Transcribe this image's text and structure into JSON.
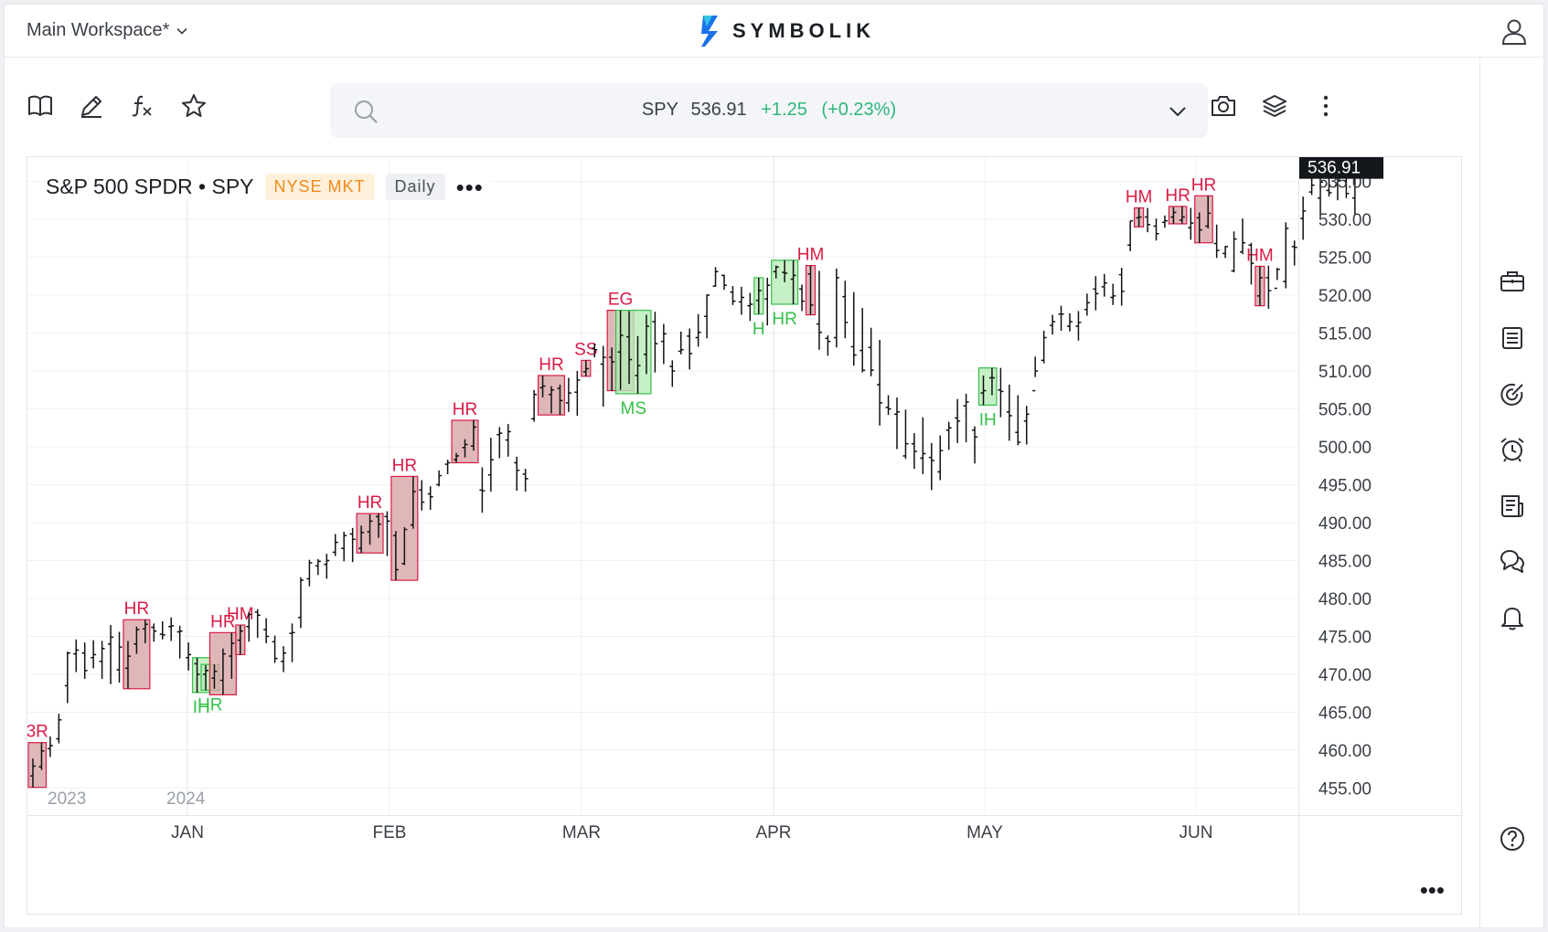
{
  "header": {
    "workspace_label": "Main Workspace*",
    "brand": "SYMBOLIK"
  },
  "quote": {
    "symbol": "SPY",
    "price": "536.91",
    "change": "+1.25",
    "change_pct": "(+0.23%)"
  },
  "chart_head": {
    "title": "S&P 500 SPDR • SPY",
    "exchange": "NYSE MKT",
    "timeframe": "Daily"
  },
  "colors": {
    "up": "#2fb67a",
    "bear": "#d81b46",
    "bull": "#35c04a",
    "bear_fill": "#d8a5a8",
    "bull_fill": "#b8ecb8"
  },
  "icons": {
    "toolbar": [
      "book-icon",
      "pencil-icon",
      "function-icon",
      "star-icon"
    ],
    "toolbar_right": [
      "camera-icon",
      "layers-icon",
      "more-vertical-icon"
    ],
    "rightbar": [
      "briefcase-icon",
      "list-icon",
      "target-icon",
      "alarm-icon",
      "news-icon",
      "chat-icon",
      "bell-icon",
      "help-icon"
    ]
  },
  "chart_data": {
    "type": "ohlc",
    "price_label": "536.91",
    "y_ticks": [
      "455.00",
      "460.00",
      "465.00",
      "470.00",
      "475.00",
      "480.00",
      "485.00",
      "490.00",
      "495.00",
      "500.00",
      "505.00",
      "510.00",
      "515.00",
      "520.00",
      "525.00",
      "530.00",
      "535.00"
    ],
    "ylim": [
      452,
      540
    ],
    "year_labels": [
      "2023",
      "2024"
    ],
    "month_labels": [
      "JAN",
      "FEB",
      "MAR",
      "APR",
      "MAY",
      "JUN"
    ],
    "bars": [
      [
        456.6,
        458.9,
        455.1,
        457.9
      ],
      [
        457.8,
        461,
        457.4,
        459.9
      ],
      [
        460.2,
        461.8,
        459.1,
        460.6
      ],
      [
        461.5,
        464.8,
        460.9,
        464
      ],
      [
        468.5,
        473,
        466.2,
        472.8
      ],
      [
        472.7,
        474.6,
        470.3,
        473.2
      ],
      [
        472.8,
        474.2,
        469.4,
        470.5
      ],
      [
        472.2,
        474.5,
        470.8,
        472.6
      ],
      [
        471.7,
        474.4,
        469.4,
        473.4
      ],
      [
        474,
        476.5,
        468.7,
        474.9
      ],
      [
        470.6,
        475.6,
        468.9,
        473.6
      ],
      [
        470.8,
        474.4,
        468.1,
        472.4
      ],
      [
        474,
        476.3,
        472.7,
        475.9
      ],
      [
        476,
        477.2,
        474.1,
        476.6
      ],
      [
        476.2,
        476.7,
        474.3,
        475.7
      ],
      [
        475.3,
        477,
        474.6,
        475.2
      ],
      [
        476.3,
        477.5,
        474.4,
        476.4
      ],
      [
        475.6,
        476.4,
        472.1,
        475.7
      ],
      [
        472.2,
        474.2,
        470.5,
        472.6
      ],
      [
        471.4,
        472.2,
        467.6,
        470
      ],
      [
        470,
        471.2,
        467.9,
        470.5
      ],
      [
        469.5,
        471.3,
        468.1,
        470.4
      ],
      [
        469.2,
        473.4,
        467.3,
        472.7
      ],
      [
        472.4,
        475.5,
        469.4,
        474.1
      ],
      [
        474.5,
        476.5,
        472.6,
        475.7
      ],
      [
        476.3,
        478.2,
        474.3,
        477.9
      ],
      [
        478.2,
        478.6,
        474.8,
        477.8
      ],
      [
        475.9,
        477.4,
        474.1,
        475
      ],
      [
        474.3,
        475.1,
        471.5,
        472.1
      ],
      [
        471.7,
        473.7,
        470.3,
        472.8
      ],
      [
        475.4,
        476.7,
        471.6,
        475.5
      ],
      [
        477.5,
        482.8,
        476.1,
        482.4
      ],
      [
        482.6,
        485.1,
        481.6,
        484.7
      ],
      [
        484.3,
        485.2,
        483.1,
        484.9
      ],
      [
        484.5,
        485.9,
        482.6,
        485
      ],
      [
        486.1,
        488.5,
        485.6,
        487.4
      ],
      [
        486.6,
        488.8,
        484.9,
        488.3
      ],
      [
        488.5,
        489.3,
        484.8,
        487.8
      ],
      [
        486.6,
        489.6,
        486,
        488.7
      ],
      [
        488.8,
        491.1,
        487.1,
        490.2
      ],
      [
        490.8,
        491.2,
        488,
        489.8
      ],
      [
        490.8,
        491.5,
        485.6,
        490.2
      ],
      [
        488.3,
        488.9,
        482.4,
        483.8
      ],
      [
        484.6,
        489.4,
        484.4,
        489.1
      ],
      [
        489.7,
        496.1,
        489.2,
        494.1
      ],
      [
        494.3,
        495.6,
        491.6,
        492.7
      ],
      [
        493.8,
        494.8,
        491.7,
        493.4
      ],
      [
        495,
        496.9,
        494.8,
        496.2
      ],
      [
        497.7,
        498.3,
        496.4,
        497.9
      ],
      [
        498.3,
        499.2,
        497.9,
        498.8
      ],
      [
        499.9,
        501,
        498.6,
        500.3
      ],
      [
        500.1,
        503.5,
        499.5,
        502.6
      ],
      [
        494.3,
        497.3,
        491.3,
        494.2
      ],
      [
        496.3,
        501.2,
        494.1,
        498.3
      ],
      [
        501.6,
        502.6,
        498.5,
        501.8
      ],
      [
        500.9,
        503,
        498.7,
        502
      ],
      [
        497.9,
        498.7,
        494.2,
        496.9
      ],
      [
        496.4,
        497.1,
        494.1,
        495.8
      ],
      [
        503.7,
        507.5,
        503.3,
        506.9
      ],
      [
        507.8,
        509.4,
        506.5,
        508
      ],
      [
        506.9,
        508,
        504.4,
        507.5
      ],
      [
        507.7,
        508.2,
        504.2,
        506.1
      ],
      [
        505.8,
        509.1,
        504.6,
        507.1
      ],
      [
        507.2,
        510,
        504.1,
        508.8
      ],
      [
        509.9,
        511.4,
        509.3,
        510.3
      ],
      [
        513,
        513.6,
        511.8,
        512.8
      ],
      [
        510.9,
        513.3,
        505.3,
        511.8
      ],
      [
        511.8,
        513.1,
        507.4,
        511.2
      ],
      [
        512.5,
        518,
        507.5,
        514.7
      ],
      [
        514.5,
        517.9,
        508.3,
        511.5
      ],
      [
        509.4,
        514.6,
        507,
        510.7
      ],
      [
        512.2,
        517.4,
        509.6,
        515.9
      ],
      [
        516.5,
        517.8,
        509.8,
        513.6
      ],
      [
        513.9,
        516.2,
        510.9,
        514.9
      ],
      [
        510.6,
        511.4,
        507.9,
        510
      ],
      [
        512.6,
        515.2,
        512.2,
        512.8
      ],
      [
        514.6,
        515.6,
        510.2,
        512.3
      ],
      [
        514.4,
        517.5,
        513.2,
        515.1
      ],
      [
        517.2,
        520.1,
        514.3,
        520
      ],
      [
        521.2,
        523.7,
        521.1,
        523.1
      ],
      [
        522.6,
        522.7,
        520.7,
        521.3
      ],
      [
        520.4,
        521.2,
        518.7,
        519.2
      ],
      [
        519.1,
        521.1,
        517.4,
        519.7
      ],
      [
        518.6,
        520.3,
        516.6,
        518.8
      ],
      [
        519.3,
        522.3,
        517.5,
        520.6
      ],
      [
        519.5,
        522.3,
        516,
        521.3
      ],
      [
        523.1,
        523.9,
        522.2,
        523.7
      ],
      [
        523,
        524.6,
        521.7,
        522.9
      ],
      [
        522.1,
        524.6,
        518.8,
        522.6
      ],
      [
        520.8,
        521.4,
        517.9,
        519.2
      ],
      [
        522.8,
        523.9,
        517.4,
        518.7
      ],
      [
        516.2,
        523.2,
        512.8,
        515.1
      ],
      [
        514.3,
        514.7,
        512,
        513.9
      ],
      [
        514.4,
        523.5,
        513.1,
        522.3
      ],
      [
        519.8,
        521.9,
        514.3,
        516.4
      ],
      [
        513.2,
        520.4,
        510.7,
        512.1
      ],
      [
        512.7,
        518.3,
        509.8,
        510.1
      ],
      [
        513.1,
        515.7,
        509.3,
        510.1
      ],
      [
        508.2,
        514.1,
        502.8,
        505.8
      ],
      [
        505.2,
        506.8,
        504.2,
        505
      ],
      [
        504.3,
        506.5,
        499.7,
        504.6
      ],
      [
        498.8,
        504.9,
        498.4,
        500.4
      ],
      [
        500.4,
        501.8,
        497.1,
        499.4
      ],
      [
        498.5,
        503.9,
        496.4,
        499.1
      ],
      [
        498.6,
        500.5,
        494.3,
        498.2
      ],
      [
        496.7,
        501.5,
        495.6,
        499.5
      ],
      [
        502.2,
        503.3,
        499.6,
        502.5
      ],
      [
        503.8,
        506.3,
        500.5,
        503.4
      ],
      [
        505.4,
        507,
        500.6,
        505.9
      ],
      [
        502.2,
        502.7,
        497.8,
        501.3
      ],
      [
        507.1,
        509.4,
        505.5,
        507.4
      ],
      [
        509.1,
        510.4,
        506.8,
        509.1
      ],
      [
        507.5,
        510.4,
        503.9,
        507.3
      ],
      [
        504.6,
        508.2,
        500.8,
        504.1
      ],
      [
        501.9,
        506.8,
        500.2,
        500.6
      ],
      [
        503.4,
        505.4,
        500.3,
        504.3
      ],
      [
        507.4,
        511.9,
        509.2,
        510
      ],
      [
        511.4,
        515.3,
        511,
        514.4
      ],
      [
        516,
        517.4,
        514.8,
        516.5
      ],
      [
        517.5,
        518.6,
        515.3,
        517.5
      ],
      [
        515.9,
        517.6,
        515.2,
        516.5
      ],
      [
        515.9,
        517.9,
        514,
        516.4
      ],
      [
        518.1,
        520.2,
        517.3,
        519
      ],
      [
        520.8,
        522.5,
        518,
        520.2
      ],
      [
        521.1,
        522.8,
        519.8,
        521.6
      ],
      [
        519.7,
        521.5,
        518.7,
        519.9
      ],
      [
        522.7,
        523.6,
        518.6,
        520.5
      ],
      [
        526.6,
        529.8,
        525.8,
        529.8
      ],
      [
        530.2,
        531.5,
        529,
        530.3
      ],
      [
        530.3,
        531.5,
        528.3,
        529.3
      ],
      [
        529.1,
        530.1,
        527.2,
        528.1
      ],
      [
        529.6,
        530.5,
        528.9,
        529.8
      ],
      [
        530.3,
        531.6,
        529.4,
        530.9
      ],
      [
        529.9,
        531.7,
        529.4,
        530.3
      ],
      [
        528.9,
        531.5,
        527.3,
        529.5
      ],
      [
        530.2,
        530.9,
        526.9,
        528.6
      ],
      [
        529.1,
        533.1,
        528.8,
        530.8
      ],
      [
        526.8,
        529.3,
        524.9,
        525.9
      ],
      [
        525.5,
        526.5,
        524.9,
        526.4
      ],
      [
        523.2,
        528.4,
        523,
        527.4
      ],
      [
        525.7,
        530.1,
        525.4,
        526.9
      ],
      [
        526.6,
        526.9,
        521.4,
        524.2
      ],
      [
        519.9,
        523.8,
        518.6,
        522.3
      ],
      [
        522.3,
        523.9,
        518.2,
        520.6
      ],
      [
        520.9,
        523.6,
        522,
        523.4
      ],
      [
        521.8,
        529.6,
        520.9,
        528.8
      ],
      [
        526.4,
        527.2,
        523.9,
        526.3
      ],
      [
        530.1,
        533,
        527.3,
        531.1
      ],
      [
        533.6,
        535.5,
        533.2,
        534.5
      ],
      [
        532.8,
        535.8,
        530.5,
        534.9
      ],
      [
        533.8,
        536.1,
        533,
        533.5
      ],
      [
        534.5,
        537.1,
        532.5,
        535.1
      ],
      [
        535.1,
        537.5,
        532.8,
        533.4
      ],
      [
        532.8,
        536.3,
        530.6,
        536.1
      ],
      [
        536.2,
        537.3,
        535.8,
        536.9
      ]
    ],
    "patterns": [
      {
        "label": "3R",
        "type": "bear",
        "start": 0,
        "end": 1
      },
      {
        "label": "HR",
        "type": "bear",
        "start": 11,
        "end": 13
      },
      {
        "label": "IH",
        "type": "bull",
        "start": 19,
        "end": 20
      },
      {
        "label": "HR",
        "type": "bull",
        "start": 20,
        "end": 21
      },
      {
        "label": "HR",
        "type": "bear",
        "start": 21,
        "end": 23
      },
      {
        "label": "HM",
        "type": "bear",
        "start": 24,
        "end": 24
      },
      {
        "label": "HR",
        "type": "bear",
        "start": 38,
        "end": 40
      },
      {
        "label": "HR",
        "type": "bear",
        "start": 42,
        "end": 44
      },
      {
        "label": "HR",
        "type": "bear",
        "start": 49,
        "end": 51
      },
      {
        "label": "HR",
        "type": "bear",
        "start": 59,
        "end": 61
      },
      {
        "label": "SS",
        "type": "bear",
        "start": 64,
        "end": 64
      },
      {
        "label": "EG",
        "type": "bear",
        "start": 67,
        "end": 69
      },
      {
        "label": "MS",
        "type": "bull",
        "start": 68,
        "end": 71
      },
      {
        "label": "H",
        "type": "bull",
        "start": 84,
        "end": 84
      },
      {
        "label": "HR",
        "type": "bull",
        "start": 86,
        "end": 88
      },
      {
        "label": "HM",
        "type": "bear",
        "start": 90,
        "end": 90
      },
      {
        "label": "IH",
        "type": "bull",
        "start": 110,
        "end": 111
      },
      {
        "label": "HM",
        "type": "bear",
        "start": 128,
        "end": 128
      },
      {
        "label": "HR",
        "type": "bear",
        "start": 132,
        "end": 133
      },
      {
        "label": "HR",
        "type": "bear",
        "start": 135,
        "end": 136
      },
      {
        "label": "HM",
        "type": "bear",
        "start": 142,
        "end": 142
      }
    ],
    "grid": true
  }
}
